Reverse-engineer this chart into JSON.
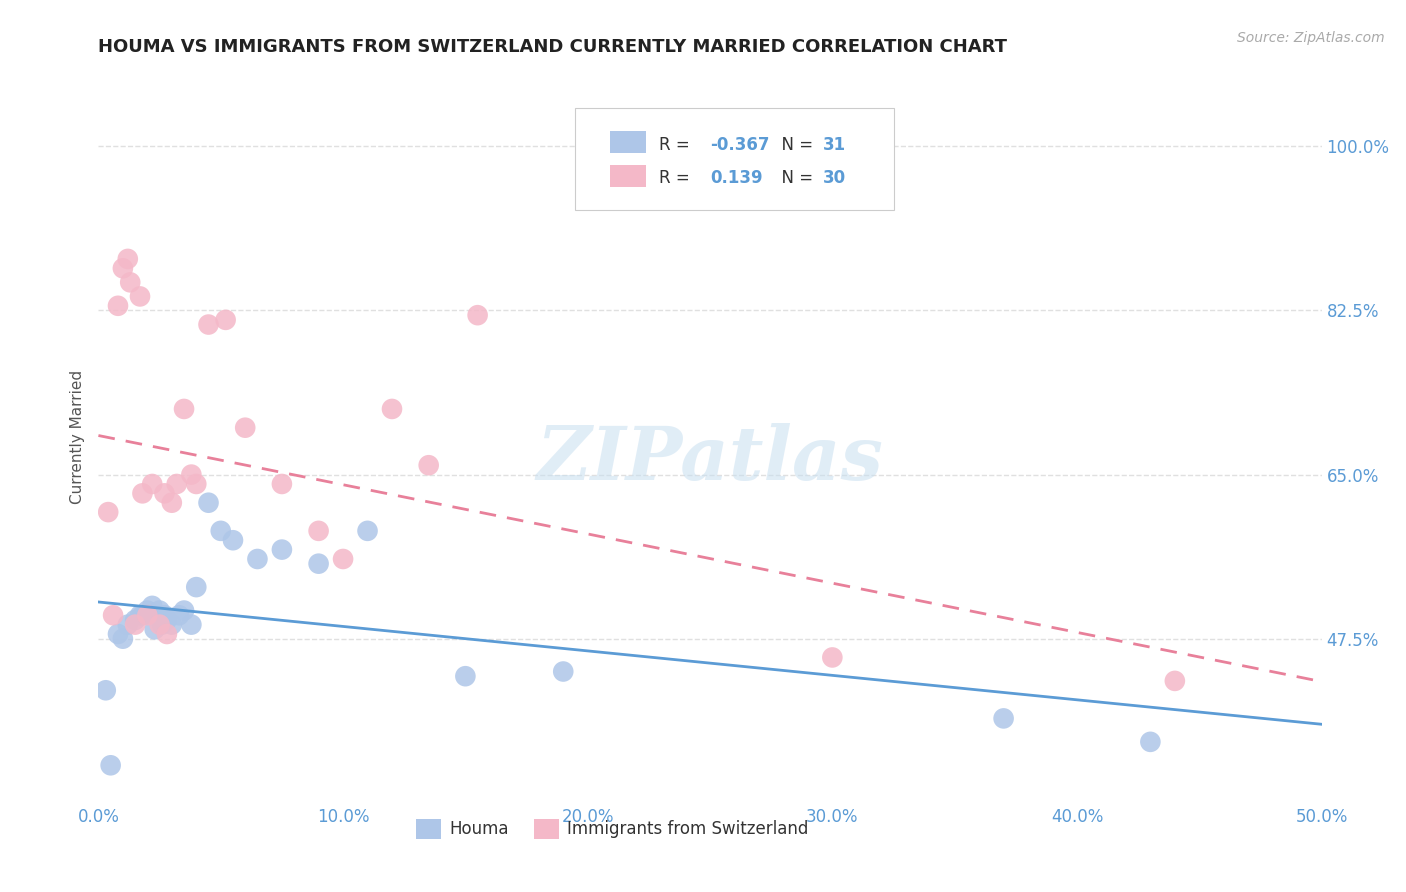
{
  "title": "HOUMA VS IMMIGRANTS FROM SWITZERLAND CURRENTLY MARRIED CORRELATION CHART",
  "source": "Source: ZipAtlas.com",
  "ylabel": "Currently Married",
  "xlim": [
    0.0,
    0.5
  ],
  "ylim": [
    0.3,
    1.08
  ],
  "xtick_labels": [
    "0.0%",
    "10.0%",
    "20.0%",
    "30.0%",
    "40.0%",
    "50.0%"
  ],
  "xtick_vals": [
    0.0,
    0.1,
    0.2,
    0.3,
    0.4,
    0.5
  ],
  "ytick_labels": [
    "100.0%",
    "82.5%",
    "65.0%",
    "47.5%"
  ],
  "ytick_vals": [
    1.0,
    0.825,
    0.65,
    0.475
  ],
  "blue_R": -0.367,
  "blue_N": 31,
  "pink_R": 0.139,
  "pink_N": 30,
  "blue_color": "#aec6e8",
  "pink_color": "#f4b8c8",
  "blue_line_color": "#5b9bd5",
  "pink_line_color": "#e8809a",
  "watermark": "ZIPatlas",
  "blue_scatter_x": [
    0.003,
    0.005,
    0.008,
    0.01,
    0.012,
    0.015,
    0.017,
    0.018,
    0.02,
    0.022,
    0.023,
    0.025,
    0.026,
    0.027,
    0.028,
    0.03,
    0.033,
    0.035,
    0.038,
    0.04,
    0.045,
    0.05,
    0.055,
    0.065,
    0.075,
    0.09,
    0.11,
    0.15,
    0.19,
    0.37,
    0.43
  ],
  "blue_scatter_y": [
    0.42,
    0.34,
    0.48,
    0.475,
    0.49,
    0.495,
    0.5,
    0.5,
    0.505,
    0.51,
    0.485,
    0.505,
    0.49,
    0.5,
    0.495,
    0.49,
    0.5,
    0.505,
    0.49,
    0.53,
    0.62,
    0.59,
    0.58,
    0.56,
    0.57,
    0.555,
    0.59,
    0.435,
    0.44,
    0.39,
    0.365
  ],
  "pink_scatter_x": [
    0.004,
    0.006,
    0.008,
    0.01,
    0.012,
    0.013,
    0.015,
    0.017,
    0.018,
    0.02,
    0.022,
    0.025,
    0.027,
    0.028,
    0.03,
    0.032,
    0.035,
    0.038,
    0.04,
    0.045,
    0.052,
    0.06,
    0.075,
    0.09,
    0.1,
    0.12,
    0.135,
    0.155,
    0.3,
    0.44
  ],
  "pink_scatter_y": [
    0.61,
    0.5,
    0.83,
    0.87,
    0.88,
    0.855,
    0.49,
    0.84,
    0.63,
    0.5,
    0.64,
    0.49,
    0.63,
    0.48,
    0.62,
    0.64,
    0.72,
    0.65,
    0.64,
    0.81,
    0.815,
    0.7,
    0.64,
    0.59,
    0.56,
    0.72,
    0.66,
    0.82,
    0.455,
    0.43
  ]
}
